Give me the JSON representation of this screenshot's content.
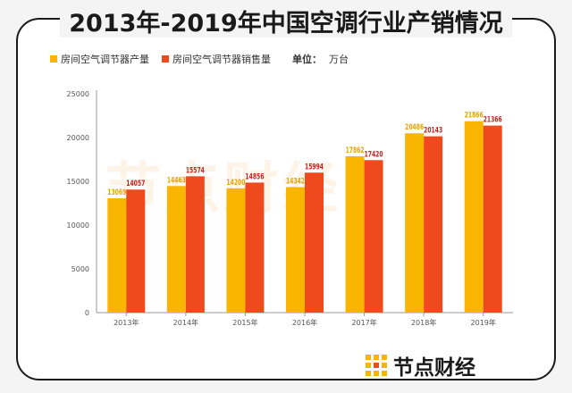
{
  "page": {
    "title": "2013年-2019年中国空调行业产销情况",
    "watermark": "节点财经",
    "brand": "节点财经",
    "unit_label": "单位：",
    "unit_value": "万台"
  },
  "colors": {
    "production": "#f9b600",
    "sales": "#ef4a1e",
    "production_label": "#e8a200",
    "sales_label": "#c0231f",
    "axis": "#999999"
  },
  "chart_data": {
    "type": "bar",
    "title": "2013年-2019年中国空调行业产销情况",
    "xlabel": "",
    "ylabel": "",
    "unit": "万台",
    "categories": [
      "2013年",
      "2014年",
      "2015年",
      "2016年",
      "2017年",
      "2018年",
      "2019年"
    ],
    "series": [
      {
        "name": "房间空气调节器产量",
        "values": [
          13069,
          14463,
          14200,
          14342,
          17862,
          20486,
          21866
        ]
      },
      {
        "name": "房间空气调节器销售量",
        "values": [
          14057,
          15574,
          14856,
          15994,
          17420,
          20143,
          21366
        ]
      }
    ],
    "ylim": [
      0,
      25000
    ],
    "yticks": [
      0,
      5000,
      10000,
      15000,
      20000,
      25000
    ],
    "legend": "top-left",
    "grid": false
  }
}
